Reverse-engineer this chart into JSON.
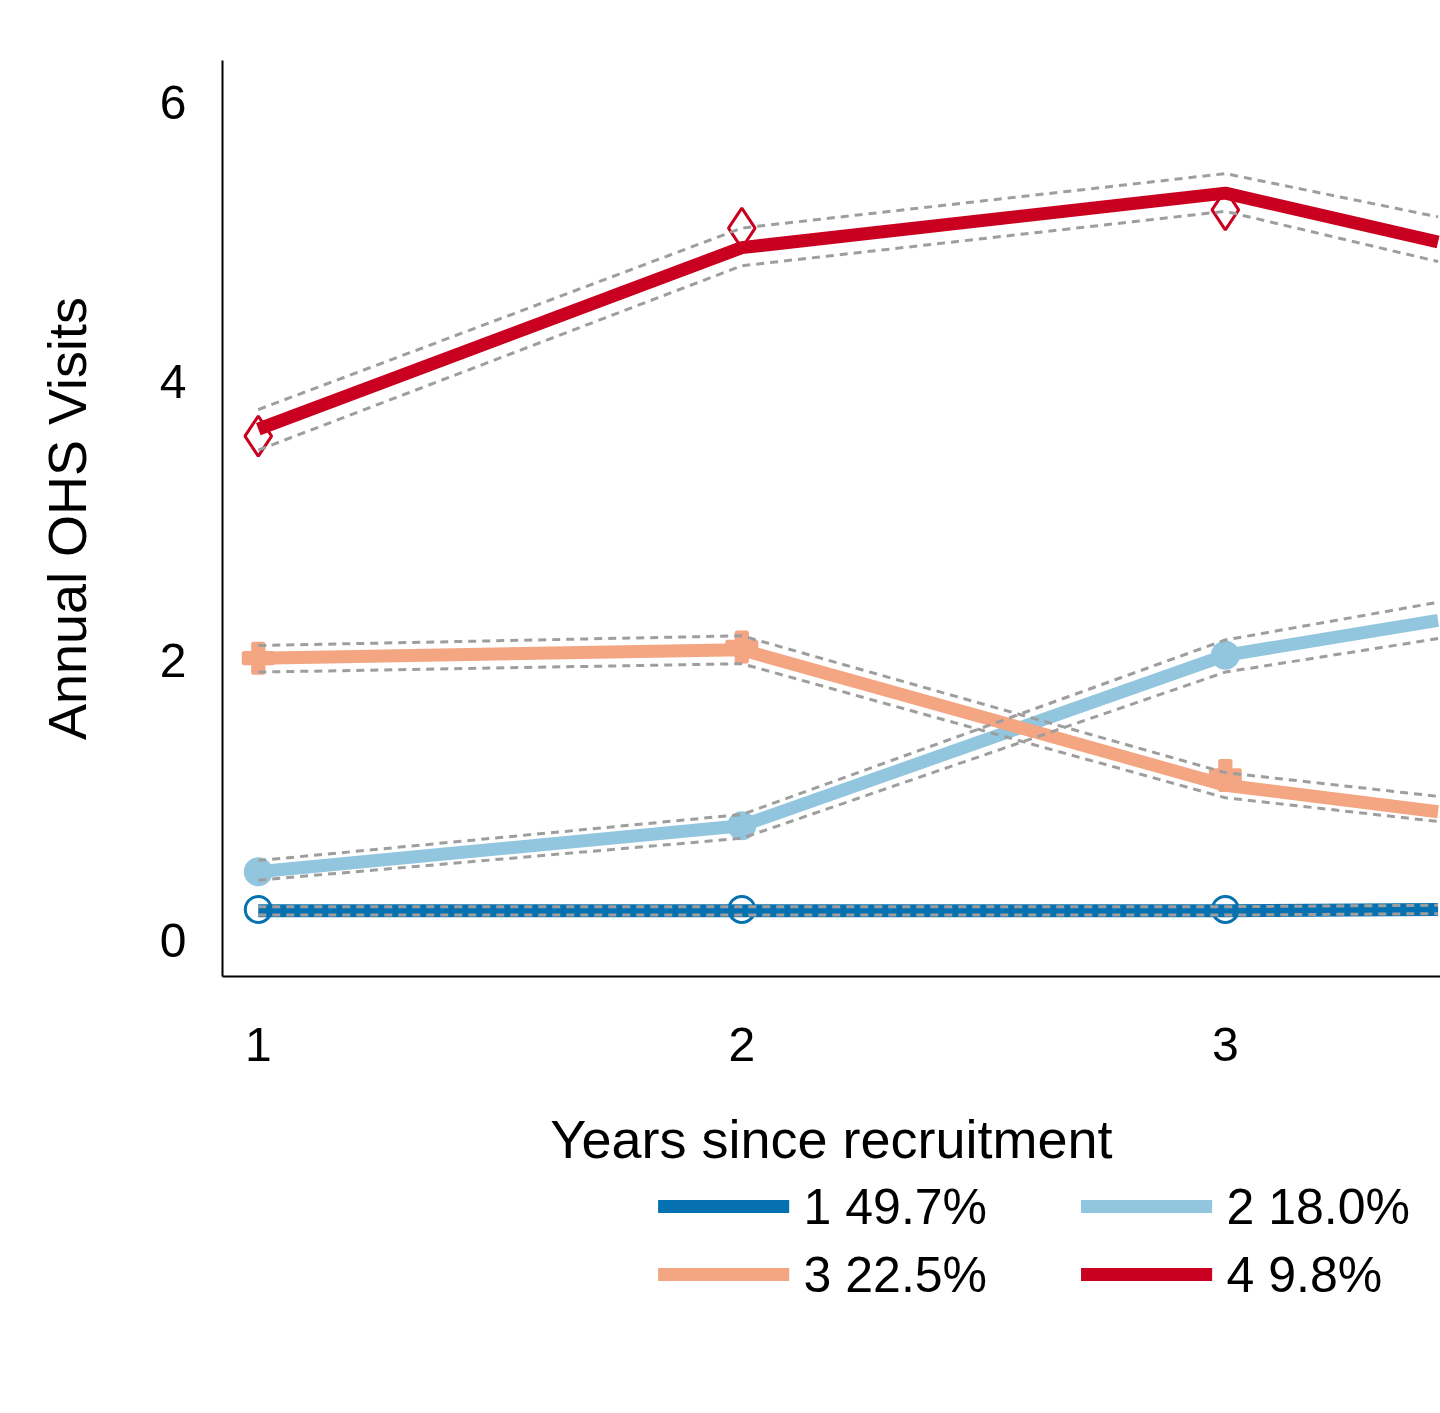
{
  "chart_data": {
    "type": "line",
    "xlabel": "Years since recruitment",
    "ylabel": "Annual OHS Visits",
    "xlim": [
      0.926,
      3.445
    ],
    "ylim": [
      -0.26,
      6.3
    ],
    "xticks": [
      1,
      2,
      3
    ],
    "yticks": [
      0,
      2,
      4,
      6
    ],
    "grid": false,
    "legend": "bottom",
    "line_style": "solid",
    "marker": "none",
    "series": [
      {
        "name": "1    49.7%",
        "color": "#0571b0",
        "x": [
          1,
          2,
          3,
          3.44
        ],
        "values": [
          0.21,
          0.21,
          0.21,
          0.22
        ]
      },
      {
        "name": "2    18.0%",
        "color": "#92c5de",
        "x": [
          1,
          2,
          3,
          3.44
        ],
        "values": [
          0.49,
          0.82,
          2.04,
          2.29
        ]
      },
      {
        "name": "3    22.5%",
        "color": "#f4a582",
        "x": [
          1,
          2,
          3,
          3.44
        ],
        "values": [
          2.02,
          2.08,
          1.11,
          0.92
        ]
      },
      {
        "name": "4     9.8%",
        "color": "#ca0020",
        "x": [
          1,
          2,
          3,
          3.44
        ],
        "values": [
          3.66,
          4.96,
          5.35,
          5.0
        ]
      },
      {
        "type": "scatter",
        "marker": "circle",
        "color": "#0571b0",
        "x": [
          1,
          2,
          3
        ],
        "values": [
          0.22,
          0.22,
          0.22
        ]
      },
      {
        "type": "scatter",
        "marker": "circle",
        "color": "#92c5de",
        "x": [
          1,
          2,
          3
        ],
        "values": [
          0.49,
          0.82,
          2.04
        ]
      },
      {
        "type": "scatter",
        "marker": "cross",
        "color": "#f4a582",
        "x": [
          1,
          2,
          3
        ],
        "values": [
          2.02,
          2.1,
          1.18
        ]
      },
      {
        "type": "scatter",
        "marker": "diamond",
        "color": "#ca0020",
        "x": [
          1,
          2,
          3
        ],
        "values": [
          3.61,
          5.1,
          5.23
        ]
      },
      {
        "type": "line",
        "line_style": "dashed",
        "color": "#9e9e9e",
        "x": [
          1,
          2,
          3,
          3.44
        ],
        "values": [
          0.18,
          0.18,
          0.18,
          0.19
        ]
      },
      {
        "type": "line",
        "line_style": "dashed",
        "color": "#9e9e9e",
        "x": [
          1,
          2,
          3,
          3.44
        ],
        "values": [
          0.24,
          0.24,
          0.24,
          0.25
        ]
      },
      {
        "type": "line",
        "line_style": "dashed",
        "color": "#9e9e9e",
        "x": [
          1,
          2,
          3,
          3.44
        ],
        "values": [
          0.43,
          0.73,
          1.92,
          2.16
        ]
      },
      {
        "type": "line",
        "line_style": "dashed",
        "color": "#9e9e9e",
        "x": [
          1,
          2,
          3,
          3.44
        ],
        "values": [
          0.57,
          0.9,
          2.15,
          2.42
        ]
      },
      {
        "type": "line",
        "line_style": "dashed",
        "color": "#9e9e9e",
        "x": [
          1,
          2,
          3,
          3.44
        ],
        "values": [
          1.92,
          1.98,
          1.02,
          0.85
        ]
      },
      {
        "type": "line",
        "line_style": "dashed",
        "color": "#9e9e9e",
        "x": [
          1,
          2,
          3,
          3.44
        ],
        "values": [
          2.11,
          2.18,
          1.2,
          1.03
        ]
      },
      {
        "type": "line",
        "line_style": "dashed",
        "color": "#9e9e9e",
        "x": [
          1,
          2,
          3,
          3.44
        ],
        "values": [
          3.51,
          4.83,
          5.22,
          4.86
        ]
      },
      {
        "type": "line",
        "line_style": "dashed",
        "color": "#9e9e9e",
        "x": [
          1,
          2,
          3,
          3.44
        ],
        "values": [
          3.8,
          5.1,
          5.49,
          5.18
        ]
      }
    ]
  }
}
